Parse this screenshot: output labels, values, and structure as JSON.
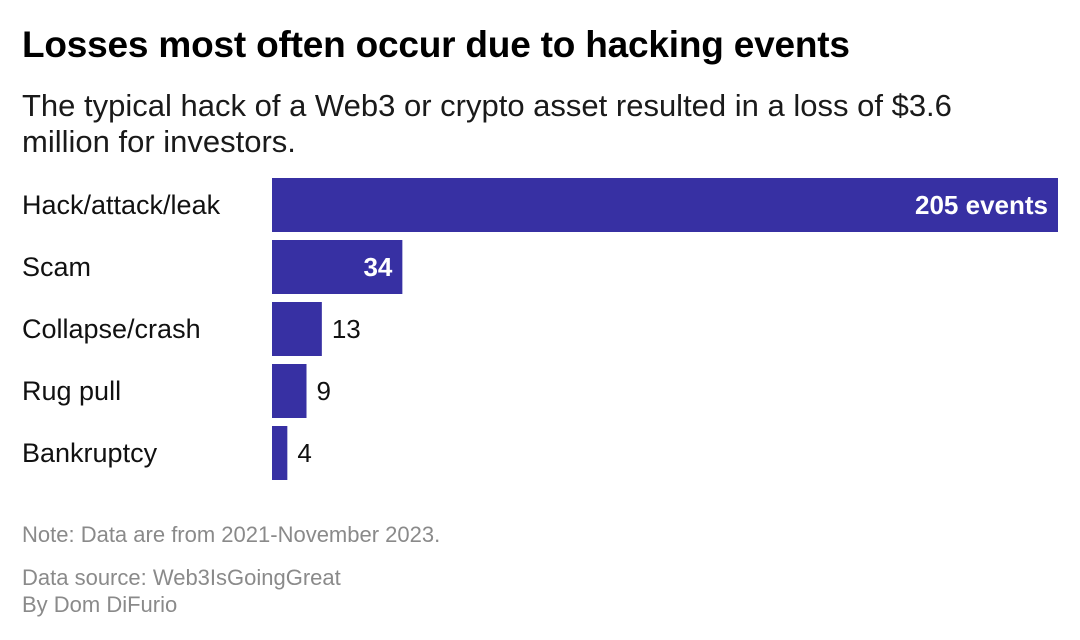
{
  "header": {
    "title": "Losses most often occur due to hacking events",
    "subtitle": "The typical hack of a Web3 or crypto asset resulted in a loss of $3.6 million for investors."
  },
  "footer": {
    "note": "Note: Data are from 2021-November 2023.",
    "source": "Data source: Web3IsGoingGreat",
    "byline": "By Dom DiFurio"
  },
  "colors": {
    "bar": "#3730a3"
  },
  "chart_data": {
    "type": "bar",
    "orientation": "horizontal",
    "categories": [
      "Hack/attack/leak",
      "Scam",
      "Collapse/crash",
      "Rug pull",
      "Bankruptcy"
    ],
    "values": [
      205,
      34,
      13,
      9,
      4
    ],
    "value_labels": [
      "205 events",
      "34",
      "13",
      "9",
      "4"
    ],
    "xlim": [
      0,
      205
    ],
    "grid": false,
    "legend": "none"
  }
}
